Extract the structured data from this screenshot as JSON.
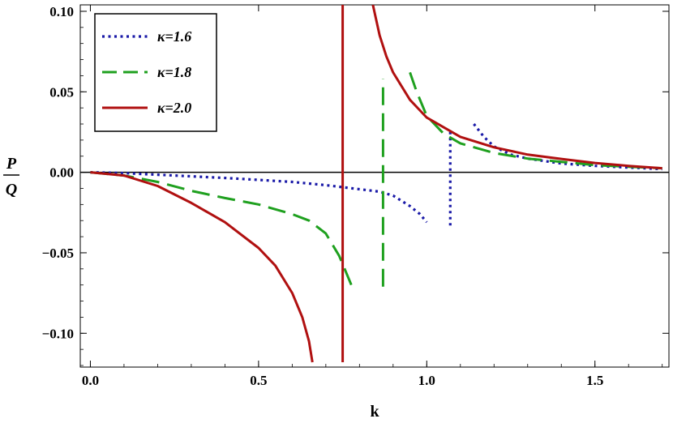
{
  "chart_data": {
    "type": "line",
    "xlabel": "k",
    "ylabel_numerator": "P",
    "ylabel_denominator": "Q",
    "xlim": [
      -0.03,
      1.72
    ],
    "ylim": [
      -0.121,
      0.104
    ],
    "x_ticks": [
      {
        "value": 0.0,
        "label": "0.0"
      },
      {
        "value": 0.5,
        "label": "0.5"
      },
      {
        "value": 1.0,
        "label": "1.0"
      },
      {
        "value": 1.5,
        "label": "1.5"
      }
    ],
    "y_ticks": [
      {
        "value": 0.1,
        "label": "0.10"
      },
      {
        "value": 0.05,
        "label": "0.05"
      },
      {
        "value": 0.0,
        "label": "0.00"
      },
      {
        "value": -0.05,
        "label": "−0.05"
      },
      {
        "value": -0.1,
        "label": "−0.10"
      }
    ],
    "legend_position": "top-left",
    "series": [
      {
        "name": "κ=1.6",
        "color": "#1a1aa8",
        "style": "dotted",
        "segments": [
          {
            "x": [
              0.0,
              0.1,
              0.2,
              0.3,
              0.4,
              0.5,
              0.6,
              0.7,
              0.8,
              0.86,
              0.9,
              0.95,
              0.98,
              1.0
            ],
            "y": [
              0.0,
              -0.0005,
              -0.0015,
              -0.0025,
              -0.0035,
              -0.0047,
              -0.006,
              -0.008,
              -0.0105,
              -0.012,
              -0.0145,
              -0.021,
              -0.026,
              -0.031
            ]
          },
          {
            "x": [
              1.07,
              1.07
            ],
            "y": [
              -0.033,
              0.025
            ]
          },
          {
            "x": [
              1.14,
              1.17,
              1.2,
              1.25,
              1.3,
              1.4,
              1.5,
              1.6,
              1.7
            ],
            "y": [
              0.03,
              0.022,
              0.016,
              0.011,
              0.0085,
              0.0055,
              0.004,
              0.003,
              0.002
            ]
          }
        ]
      },
      {
        "name": "κ=1.8",
        "color": "#1fa01f",
        "style": "dashed",
        "segments": [
          {
            "x": [
              0.0,
              0.1,
              0.2,
              0.3,
              0.4,
              0.5,
              0.6,
              0.65,
              0.7,
              0.74,
              0.76,
              0.78
            ],
            "y": [
              0.0,
              -0.002,
              -0.006,
              -0.0115,
              -0.016,
              -0.02,
              -0.026,
              -0.03,
              -0.038,
              -0.052,
              -0.062,
              -0.072
            ]
          },
          {
            "x": [
              0.87,
              0.87
            ],
            "y": [
              -0.071,
              0.058
            ]
          },
          {
            "x": [
              0.95,
              0.97,
              1.0,
              1.05,
              1.1,
              1.2,
              1.3,
              1.4,
              1.5,
              1.6,
              1.7
            ],
            "y": [
              0.062,
              0.05,
              0.035,
              0.024,
              0.018,
              0.012,
              0.0085,
              0.0065,
              0.0045,
              0.0035,
              0.0025
            ]
          }
        ]
      },
      {
        "name": "κ=2.0",
        "color": "#b01010",
        "style": "solid",
        "segments": [
          {
            "x": [
              0.0,
              0.1,
              0.2,
              0.3,
              0.4,
              0.5,
              0.55,
              0.6,
              0.63,
              0.65,
              0.66
            ],
            "y": [
              0.0,
              -0.002,
              -0.0085,
              -0.019,
              -0.031,
              -0.047,
              -0.058,
              -0.075,
              -0.09,
              -0.105,
              -0.118
            ]
          },
          {
            "x": [
              0.75,
              0.75
            ],
            "y": [
              -0.118,
              0.104
            ]
          },
          {
            "x": [
              0.84,
              0.86,
              0.88,
              0.9,
              0.95,
              1.0,
              1.1,
              1.2,
              1.3,
              1.4,
              1.5,
              1.6,
              1.7
            ],
            "y": [
              0.104,
              0.085,
              0.072,
              0.062,
              0.045,
              0.034,
              0.022,
              0.0155,
              0.011,
              0.0083,
              0.0058,
              0.004,
              0.0025
            ]
          }
        ]
      }
    ]
  }
}
